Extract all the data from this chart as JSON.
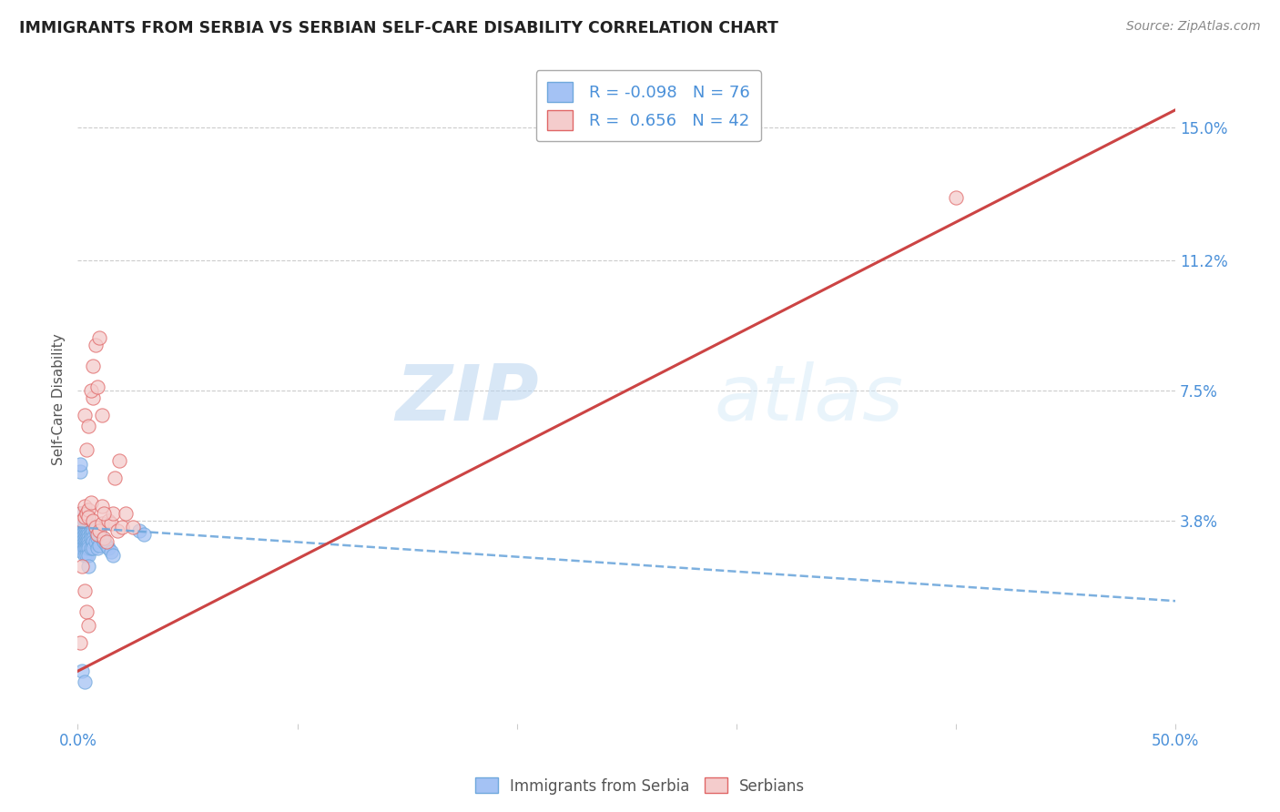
{
  "title": "IMMIGRANTS FROM SERBIA VS SERBIAN SELF-CARE DISABILITY CORRELATION CHART",
  "source": "Source: ZipAtlas.com",
  "ylabel": "Self-Care Disability",
  "ytick_labels": [
    "15.0%",
    "11.2%",
    "7.5%",
    "3.8%"
  ],
  "ytick_values": [
    0.15,
    0.112,
    0.075,
    0.038
  ],
  "xlim": [
    0.0,
    0.5
  ],
  "ylim": [
    -0.02,
    0.165
  ],
  "color_blue_fill": "#a4c2f4",
  "color_blue_edge": "#6fa8dc",
  "color_pink_fill": "#f4cccc",
  "color_pink_edge": "#e06666",
  "color_line_blue": "#6fa8dc",
  "color_line_pink": "#cc4444",
  "background_color": "#ffffff",
  "grid_color": "#cccccc",
  "watermark_zip": "ZIP",
  "watermark_atlas": "atlas",
  "blue_scatter_x": [
    0.0,
    0.001,
    0.001,
    0.001,
    0.001,
    0.001,
    0.001,
    0.001,
    0.001,
    0.001,
    0.002,
    0.002,
    0.002,
    0.002,
    0.002,
    0.002,
    0.002,
    0.002,
    0.002,
    0.002,
    0.003,
    0.003,
    0.003,
    0.003,
    0.003,
    0.003,
    0.003,
    0.003,
    0.003,
    0.003,
    0.004,
    0.004,
    0.004,
    0.004,
    0.004,
    0.004,
    0.004,
    0.004,
    0.004,
    0.004,
    0.005,
    0.005,
    0.005,
    0.005,
    0.005,
    0.005,
    0.005,
    0.005,
    0.005,
    0.005,
    0.006,
    0.006,
    0.006,
    0.006,
    0.007,
    0.007,
    0.007,
    0.007,
    0.008,
    0.008,
    0.009,
    0.009,
    0.01,
    0.01,
    0.011,
    0.012,
    0.013,
    0.014,
    0.015,
    0.016,
    0.001,
    0.001,
    0.002,
    0.003,
    0.028,
    0.03
  ],
  "blue_scatter_y": [
    0.035,
    0.04,
    0.038,
    0.037,
    0.036,
    0.035,
    0.034,
    0.033,
    0.032,
    0.031,
    0.038,
    0.037,
    0.036,
    0.035,
    0.034,
    0.033,
    0.032,
    0.031,
    0.03,
    0.029,
    0.038,
    0.037,
    0.036,
    0.035,
    0.034,
    0.033,
    0.032,
    0.031,
    0.03,
    0.028,
    0.038,
    0.037,
    0.036,
    0.035,
    0.034,
    0.033,
    0.032,
    0.031,
    0.03,
    0.028,
    0.037,
    0.036,
    0.035,
    0.034,
    0.033,
    0.032,
    0.031,
    0.03,
    0.028,
    0.025,
    0.035,
    0.034,
    0.033,
    0.03,
    0.035,
    0.033,
    0.032,
    0.03,
    0.035,
    0.032,
    0.033,
    0.03,
    0.034,
    0.031,
    0.033,
    0.032,
    0.031,
    0.03,
    0.029,
    0.028,
    0.052,
    0.054,
    -0.005,
    -0.008,
    0.035,
    0.034
  ],
  "pink_scatter_x": [
    0.001,
    0.002,
    0.003,
    0.003,
    0.004,
    0.005,
    0.005,
    0.006,
    0.007,
    0.007,
    0.008,
    0.009,
    0.01,
    0.011,
    0.011,
    0.012,
    0.013,
    0.014,
    0.015,
    0.016,
    0.017,
    0.018,
    0.019,
    0.02,
    0.022,
    0.025,
    0.003,
    0.004,
    0.005,
    0.006,
    0.007,
    0.008,
    0.009,
    0.01,
    0.011,
    0.012,
    0.4,
    0.002,
    0.003,
    0.004,
    0.005,
    0.001
  ],
  "pink_scatter_y": [
    0.04,
    0.038,
    0.039,
    0.042,
    0.04,
    0.041,
    0.039,
    0.043,
    0.038,
    0.073,
    0.036,
    0.034,
    0.035,
    0.068,
    0.037,
    0.033,
    0.032,
    0.038,
    0.037,
    0.04,
    0.05,
    0.035,
    0.055,
    0.036,
    0.04,
    0.036,
    0.068,
    0.058,
    0.065,
    0.075,
    0.082,
    0.088,
    0.076,
    0.09,
    0.042,
    0.04,
    0.13,
    0.025,
    0.018,
    0.012,
    0.008,
    0.003
  ],
  "blue_line_x": [
    0.0,
    0.5
  ],
  "blue_line_y": [
    0.036,
    0.015
  ],
  "pink_line_x": [
    0.0,
    0.5
  ],
  "pink_line_y": [
    -0.005,
    0.155
  ]
}
